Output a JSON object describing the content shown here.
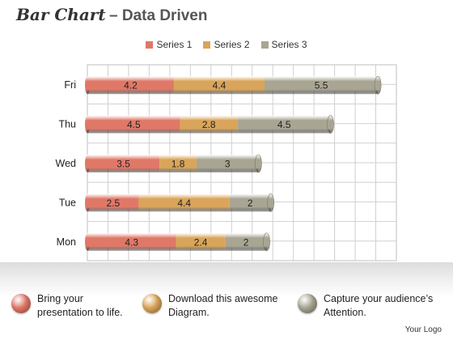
{
  "header": {
    "title_script": "Bar Chart",
    "title_rest": "– Data Driven"
  },
  "chart_data": {
    "type": "bar",
    "orientation": "horizontal",
    "stacked": true,
    "categories": [
      "Mon",
      "Tue",
      "Wed",
      "Thu",
      "Fri"
    ],
    "series": [
      {
        "name": "Series 1",
        "color": "#e07868",
        "values": [
          4.3,
          2.5,
          3.5,
          4.5,
          4.2
        ]
      },
      {
        "name": "Series 2",
        "color": "#d9a55a",
        "values": [
          2.4,
          4.4,
          1.8,
          2.8,
          4.4
        ]
      },
      {
        "name": "Series 3",
        "color": "#a8a593",
        "values": [
          2,
          2,
          3,
          4.5,
          5.5
        ]
      }
    ],
    "xlim": [
      0,
      15
    ],
    "grid": true,
    "legend_position": "top",
    "data_labels": true
  },
  "features": [
    {
      "text": "Bring your\npresentation to life.",
      "color": "#e07868"
    },
    {
      "text": "Download this awesome\nDiagram.",
      "color": "#d9a55a"
    },
    {
      "text": "Capture your audience’s\nAttention.",
      "color": "#a8a593"
    }
  ],
  "footer": {
    "logo_text": "Your Logo"
  }
}
